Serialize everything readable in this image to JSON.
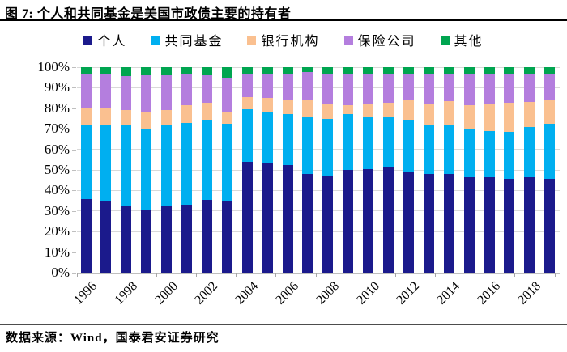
{
  "header": {
    "title": "图 7: 个人和共同基金是美国市政债主要的持有者"
  },
  "chart_data": {
    "type": "bar",
    "stacked": true,
    "unit": "percent",
    "title": "个人和共同基金是美国市政债主要的持有者",
    "x": [
      1996,
      1997,
      1998,
      1999,
      2000,
      2001,
      2002,
      2003,
      2004,
      2005,
      2006,
      2007,
      2008,
      2009,
      2010,
      2011,
      2012,
      2013,
      2014,
      2015,
      2016,
      2017,
      2018,
      2019
    ],
    "x_tick_labels": [
      "1996",
      "1998",
      "2000",
      "2002",
      "2004",
      "2006",
      "2008",
      "2010",
      "2012",
      "2014",
      "2016",
      "2018"
    ],
    "y_ticks": [
      "0%",
      "10%",
      "20%",
      "30%",
      "40%",
      "50%",
      "60%",
      "70%",
      "80%",
      "90%",
      "100%"
    ],
    "ylim": [
      0,
      100
    ],
    "grid": true,
    "legend_position": "top",
    "series": [
      {
        "name": "个人",
        "color": "#1B1A8C",
        "values": [
          36,
          35,
          32.5,
          30.5,
          32.5,
          33,
          35.5,
          34.5,
          54,
          53.5,
          52.5,
          48,
          47,
          50,
          50.5,
          51.5,
          49,
          48,
          48,
          46.5,
          46.5,
          45.5,
          46.5,
          45.5
        ]
      },
      {
        "name": "共同基金",
        "color": "#00AFF0",
        "values": [
          36,
          37,
          39,
          39.5,
          39,
          40,
          39,
          38,
          25.5,
          24.5,
          24.5,
          28,
          28,
          27,
          25,
          24,
          25.5,
          23.5,
          23.5,
          23.5,
          22.5,
          23,
          24.5,
          27
        ]
      },
      {
        "name": "银行机构",
        "color": "#FAC090",
        "values": [
          8,
          8,
          7.5,
          8.5,
          7.5,
          8.5,
          8,
          6,
          6,
          7,
          7,
          8,
          7,
          4.5,
          6.5,
          7,
          9.5,
          10.5,
          12,
          11.5,
          13,
          14,
          12,
          11.5
        ]
      },
      {
        "name": "保险公司",
        "color": "#B47EDE",
        "values": [
          16.5,
          16.5,
          16.5,
          17.5,
          17,
          15,
          13.5,
          16.5,
          11.5,
          12,
          13,
          13.5,
          14.5,
          15,
          15,
          14.5,
          12.5,
          14.5,
          13.5,
          15,
          15,
          14.5,
          14,
          13
        ]
      },
      {
        "name": "其他",
        "color": "#00A550",
        "values": [
          3.5,
          3.5,
          4.5,
          4,
          4,
          3.5,
          4,
          5,
          3,
          3,
          3,
          2.5,
          3.5,
          3.5,
          3,
          3,
          3.5,
          3.5,
          3,
          3.5,
          3,
          3,
          3,
          3
        ]
      }
    ]
  },
  "footer": {
    "source": "数据来源：Wind，国泰君安证券研究"
  }
}
